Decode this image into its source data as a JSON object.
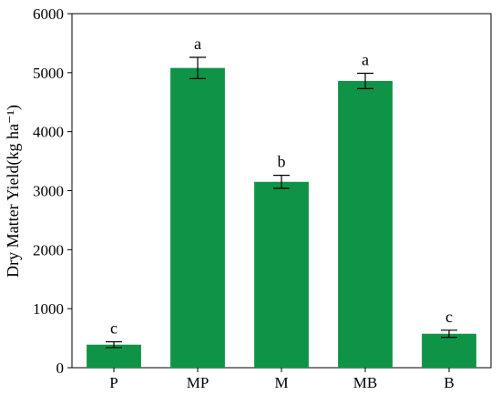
{
  "chart_data": {
    "type": "bar",
    "categories": [
      "P",
      "MP",
      "M",
      "MB",
      "B"
    ],
    "values": [
      390,
      5080,
      3150,
      4860,
      575
    ],
    "errors": [
      50,
      180,
      110,
      130,
      60
    ],
    "significance": [
      "c",
      "a",
      "b",
      "a",
      "c"
    ],
    "ylabel": "Dry Matter Yield(kg ha⁻¹)",
    "xlabel": "",
    "title": "",
    "ylim": [
      0,
      6000
    ],
    "yticks": [
      0,
      1000,
      2000,
      3000,
      4000,
      5000,
      6000
    ],
    "grid": false,
    "bar_color": "#0f9347",
    "error_color": "#000000"
  }
}
